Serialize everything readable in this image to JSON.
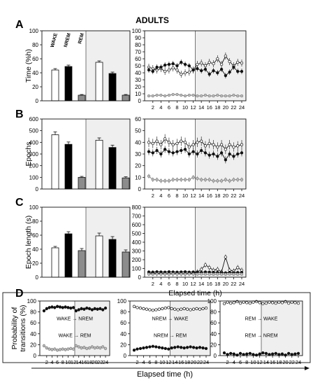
{
  "figure": {
    "title": "ADULTS",
    "bottom_xlabel": "Elapsed time (h)"
  },
  "chart_data": [
    {
      "id": "A-bar",
      "panel_letter": "A",
      "type": "bar",
      "ylabel": "Time (%h)",
      "ylim": [
        0,
        100
      ],
      "yticks": [
        0,
        20,
        40,
        60,
        80,
        100
      ],
      "groups": [
        {
          "shaded": false,
          "values": [
            44,
            49,
            8
          ],
          "errors": [
            2,
            2,
            1
          ]
        },
        {
          "shaded": true,
          "values": [
            55,
            39,
            8
          ],
          "errors": [
            2,
            2,
            1
          ]
        }
      ],
      "bar_labels": [
        "WAKE",
        "NREM",
        "REM"
      ]
    },
    {
      "id": "A-line",
      "type": "line",
      "ylim": [
        0,
        100
      ],
      "yticks": [
        0,
        10,
        20,
        30,
        40,
        50,
        60,
        70,
        80,
        90,
        100
      ],
      "x": [
        1,
        2,
        3,
        4,
        5,
        6,
        7,
        8,
        9,
        10,
        11,
        12,
        13,
        14,
        15,
        16,
        17,
        18,
        19,
        20,
        21,
        22,
        23,
        24
      ],
      "xtick_labels": [
        "2",
        "4",
        "6",
        "8",
        "10",
        "12",
        "14",
        "16",
        "18",
        "20",
        "22",
        "24"
      ],
      "dark_from_x": 12.5,
      "series": [
        {
          "style": "open",
          "values": [
            48,
            46,
            44,
            46,
            42,
            44,
            47,
            44,
            38,
            40,
            41,
            44,
            52,
            54,
            50,
            55,
            53,
            60,
            52,
            64,
            56,
            50,
            55,
            54
          ],
          "error": 5
        },
        {
          "style": "filled",
          "values": [
            44,
            42,
            48,
            48,
            51,
            52,
            53,
            50,
            55,
            52,
            50,
            44,
            46,
            43,
            45,
            38,
            43,
            40,
            45,
            36,
            41,
            48,
            42,
            42
          ],
          "error": 4
        },
        {
          "style": "grey",
          "values": [
            7,
            7,
            8,
            8,
            7,
            8,
            9,
            9,
            8,
            7,
            8,
            8,
            7,
            7,
            8,
            7,
            7,
            8,
            7,
            7,
            7,
            8,
            7,
            7
          ],
          "error": 1
        }
      ]
    },
    {
      "id": "B-bar",
      "panel_letter": "B",
      "type": "bar",
      "ylabel": "Epochs",
      "ylim": [
        0,
        600
      ],
      "yticks": [
        0,
        100,
        200,
        300,
        400,
        500,
        600
      ],
      "groups": [
        {
          "shaded": false,
          "values": [
            465,
            383,
            100
          ],
          "errors": [
            25,
            20,
            8
          ]
        },
        {
          "shaded": true,
          "values": [
            418,
            356,
            95
          ],
          "errors": [
            20,
            20,
            10
          ]
        }
      ]
    },
    {
      "id": "B-line",
      "type": "line",
      "ylim": [
        0,
        60
      ],
      "yticks": [
        0,
        10,
        20,
        30,
        40,
        50,
        60
      ],
      "x": [
        1,
        2,
        3,
        4,
        5,
        6,
        7,
        8,
        9,
        10,
        11,
        12,
        13,
        14,
        15,
        16,
        17,
        18,
        19,
        20,
        21,
        22,
        23,
        24
      ],
      "xtick_labels": [
        "2",
        "4",
        "6",
        "8",
        "10",
        "12",
        "14",
        "16",
        "18",
        "20",
        "22",
        "24"
      ],
      "dark_from_x": 12.5,
      "series": [
        {
          "style": "open",
          "values": [
            40,
            39,
            41,
            38,
            43,
            40,
            38,
            39,
            41,
            40,
            36,
            38,
            40,
            41,
            37,
            39,
            38,
            36,
            38,
            34,
            38,
            36,
            37,
            38
          ],
          "error": 4
        },
        {
          "style": "filled",
          "values": [
            32,
            31,
            33,
            30,
            34,
            32,
            31,
            32,
            33,
            34,
            30,
            32,
            30,
            33,
            31,
            29,
            30,
            28,
            31,
            25,
            30,
            28,
            30,
            31
          ],
          "error": 3
        },
        {
          "style": "grey",
          "values": [
            11,
            8,
            8,
            7,
            7,
            7,
            8,
            8,
            8,
            8,
            8,
            10,
            9,
            8,
            8,
            8,
            7,
            7,
            7,
            8,
            7,
            8,
            8,
            8
          ],
          "error": 2
        }
      ]
    },
    {
      "id": "C-bar",
      "panel_letter": "C",
      "type": "bar",
      "ylabel": "Epoch length (s)",
      "ylim": [
        0,
        100
      ],
      "yticks": [
        0,
        20,
        40,
        60,
        80,
        100
      ],
      "groups": [
        {
          "shaded": false,
          "values": [
            42,
            62,
            38
          ],
          "errors": [
            2,
            3,
            3
          ]
        },
        {
          "shaded": true,
          "values": [
            59,
            54,
            36
          ],
          "errors": [
            4,
            4,
            3
          ]
        }
      ]
    },
    {
      "id": "C-line",
      "type": "line",
      "ylim": [
        0,
        800
      ],
      "yticks": [
        0,
        100,
        200,
        300,
        400,
        500,
        600,
        700,
        800
      ],
      "x": [
        1,
        2,
        3,
        4,
        5,
        6,
        7,
        8,
        9,
        10,
        11,
        12,
        13,
        14,
        15,
        16,
        17,
        18,
        19,
        20,
        21,
        22,
        23,
        24
      ],
      "xtick_labels": [
        "2",
        "4",
        "6",
        "8",
        "10",
        "12",
        "14",
        "16",
        "18",
        "20",
        "22",
        "24"
      ],
      "xlabel": "Elapsed time (h)",
      "dark_from_x": 12.5,
      "series": [
        {
          "style": "open",
          "values": [
            45,
            48,
            42,
            45,
            40,
            42,
            40,
            44,
            42,
            40,
            44,
            45,
            60,
            90,
            140,
            110,
            80,
            90,
            60,
            230,
            80,
            70,
            110,
            80
          ],
          "error": 30
        },
        {
          "style": "filled",
          "values": [
            60,
            58,
            62,
            60,
            58,
            62,
            60,
            58,
            60,
            62,
            58,
            60,
            58,
            55,
            60,
            58,
            56,
            55,
            52,
            50,
            55,
            52,
            54,
            55
          ],
          "error": 10
        },
        {
          "style": "grey",
          "values": [
            35,
            33,
            36,
            34,
            35,
            33,
            36,
            34,
            35,
            34,
            36,
            35,
            34,
            36,
            35,
            34,
            33,
            35,
            34,
            33,
            35,
            34,
            33,
            34
          ],
          "error": 5
        }
      ]
    },
    {
      "id": "D-1",
      "panel_letter": "D",
      "type": "line",
      "ylabel": "Probability of\ntransitions (%)",
      "ylim": [
        0,
        100
      ],
      "yticks": [
        0,
        20,
        40,
        60,
        80,
        100
      ],
      "x": [
        1,
        2,
        3,
        4,
        5,
        6,
        7,
        8,
        9,
        10,
        11,
        12,
        13,
        14,
        15,
        16,
        17,
        18,
        19,
        20,
        21,
        22,
        23,
        24
      ],
      "xtick_labels": [
        "2",
        "4",
        "6",
        "8",
        "10",
        "12",
        "14",
        "16",
        "18",
        "20",
        "22",
        "24"
      ],
      "dark_from_x": 12.5,
      "annotations": [
        "WAKE → NREM",
        "WAKE → REM"
      ],
      "series": [
        {
          "style": "filled",
          "values": [
            82,
            86,
            88,
            89,
            88,
            90,
            89,
            88,
            89,
            88,
            87,
            88,
            82,
            84,
            86,
            85,
            87,
            86,
            84,
            86,
            85,
            86,
            84,
            87
          ],
          "error": 3
        },
        {
          "style": "grey",
          "values": [
            18,
            14,
            12,
            11,
            12,
            10,
            11,
            12,
            11,
            12,
            13,
            12,
            18,
            16,
            14,
            15,
            13,
            14,
            16,
            14,
            15,
            14,
            16,
            13
          ],
          "error": 3
        }
      ]
    },
    {
      "id": "D-2",
      "type": "line",
      "ylim": [
        0,
        100
      ],
      "yticks": [
        0,
        20,
        40,
        60,
        80,
        100
      ],
      "x": [
        1,
        2,
        3,
        4,
        5,
        6,
        7,
        8,
        9,
        10,
        11,
        12,
        13,
        14,
        15,
        16,
        17,
        18,
        19,
        20,
        21,
        22,
        23,
        24
      ],
      "xtick_labels": [
        "2",
        "4",
        "6",
        "8",
        "10",
        "12",
        "14",
        "16",
        "18",
        "20",
        "22",
        "24"
      ],
      "dark_from_x": 12.5,
      "annotations": [
        "NREM → WAKE",
        "NREM → REM"
      ],
      "series": [
        {
          "style": "open",
          "values": [
            90,
            88,
            87,
            86,
            85,
            84,
            83,
            84,
            85,
            86,
            87,
            88,
            86,
            85,
            84,
            85,
            86,
            85,
            84,
            85,
            86,
            85,
            86,
            87
          ],
          "error": 2
        },
        {
          "style": "filled",
          "values": [
            10,
            12,
            13,
            14,
            15,
            16,
            17,
            16,
            15,
            14,
            13,
            12,
            14,
            15,
            16,
            15,
            14,
            15,
            16,
            15,
            14,
            15,
            14,
            13
          ],
          "error": 2
        }
      ]
    },
    {
      "id": "D-3",
      "type": "line",
      "ylim": [
        0,
        100
      ],
      "yticks": [
        0,
        20,
        40,
        60,
        80,
        100
      ],
      "x": [
        1,
        2,
        3,
        4,
        5,
        6,
        7,
        8,
        9,
        10,
        11,
        12,
        13,
        14,
        15,
        16,
        17,
        18,
        19,
        20,
        21,
        22,
        23,
        24
      ],
      "xtick_labels": [
        "2",
        "4",
        "6",
        "8",
        "10",
        "12",
        "14",
        "16",
        "18",
        "20",
        "22",
        "24"
      ],
      "dark_from_x": 12.5,
      "annotations": [
        "REM → WAKE",
        "REM → NREM"
      ],
      "series": [
        {
          "style": "open",
          "values": [
            95,
            98,
            96,
            97,
            99,
            96,
            98,
            97,
            96,
            98,
            99,
            97,
            95,
            96,
            98,
            97,
            96,
            98,
            97,
            99,
            96,
            98,
            97,
            96
          ],
          "error": 2
        },
        {
          "style": "filled",
          "values": [
            5,
            2,
            4,
            3,
            1,
            4,
            2,
            3,
            4,
            2,
            1,
            3,
            5,
            4,
            2,
            3,
            4,
            2,
            3,
            1,
            4,
            2,
            3,
            4
          ],
          "error": 2
        }
      ]
    }
  ]
}
